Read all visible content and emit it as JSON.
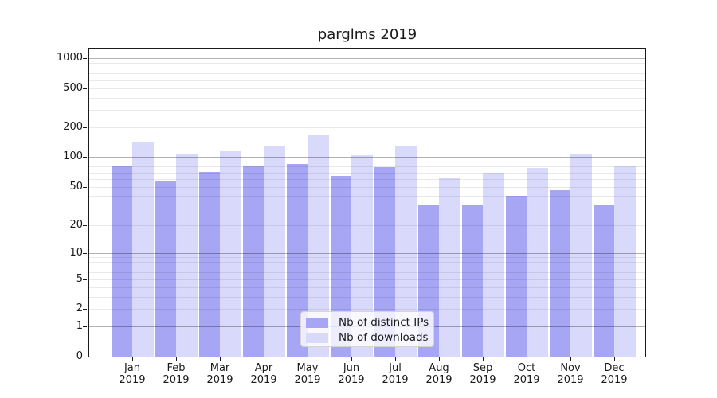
{
  "title": "parglms 2019",
  "legend": {
    "items": [
      {
        "label": "Nb of distinct IPs",
        "color": "#a6a6f5"
      },
      {
        "label": "Nb of downloads",
        "color": "#d9d9fb"
      }
    ]
  },
  "axes": {
    "y_tick_labels": [
      "0",
      "1",
      "2",
      "5",
      "10",
      "20",
      "50",
      "100",
      "200",
      "500",
      "1000"
    ],
    "x_year": "2019",
    "x_months": [
      "Jan",
      "Feb",
      "Mar",
      "Apr",
      "May",
      "Jun",
      "Jul",
      "Aug",
      "Sep",
      "Oct",
      "Nov",
      "Dec"
    ]
  },
  "colors": {
    "bar_ips": "#a6a6f5",
    "bar_downloads": "#d9d9fb",
    "grid_major": "rgba(0,0,0,0.30)",
    "grid_minor": "rgba(0,0,0,0.085)",
    "spine": "#1a1a1a",
    "text": "#1a1a1a",
    "legend_border": "#d4d4d4",
    "legend_bg": "rgba(255,255,255,0.8)"
  },
  "chart_data": {
    "type": "bar",
    "title": "parglms 2019",
    "categories": [
      "Jan 2019",
      "Feb 2019",
      "Mar 2019",
      "Apr 2019",
      "May 2019",
      "Jun 2019",
      "Jul 2019",
      "Aug 2019",
      "Sep 2019",
      "Oct 2019",
      "Nov 2019",
      "Dec 2019"
    ],
    "series": [
      {
        "name": "Nb of distinct IPs",
        "color": "#a6a6f5",
        "values": [
          80,
          58,
          71,
          82,
          85,
          64,
          79,
          32,
          32,
          40,
          46,
          33
        ]
      },
      {
        "name": "Nb of downloads",
        "color": "#d9d9fb",
        "values": [
          140,
          108,
          115,
          130,
          170,
          104,
          131,
          62,
          70,
          77,
          106,
          82
        ]
      }
    ],
    "xlabel": "",
    "ylabel": "",
    "yscale": "log1p",
    "yticks": [
      0,
      1,
      2,
      5,
      10,
      20,
      50,
      100,
      200,
      500,
      1000
    ],
    "ylim": [
      0,
      1250
    ],
    "grid": "horizontal, major lines at powers of 10, minor lines at 2-9 per decade, drawn over bars",
    "legend_position": "lower center, overlapping bars"
  }
}
